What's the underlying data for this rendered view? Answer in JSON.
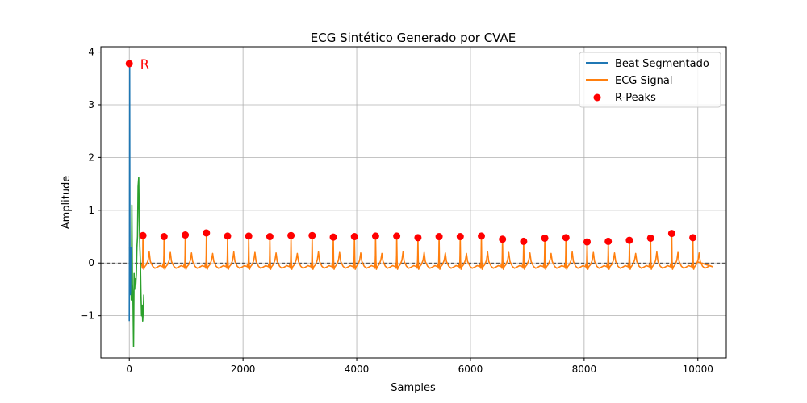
{
  "chart_data": {
    "type": "line",
    "title": "ECG Sintético Generado por CVAE",
    "xlabel": "Samples",
    "ylabel": "Amplitude",
    "xlim": [
      -500,
      10500
    ],
    "ylim": [
      -1.8,
      4.1
    ],
    "xticks": [
      0,
      2000,
      4000,
      6000,
      8000,
      10000
    ],
    "yticks": [
      -1,
      0,
      1,
      2,
      3,
      4
    ],
    "xtick_labels": [
      "0",
      "2000",
      "4000",
      "6000",
      "8000",
      "10000"
    ],
    "ytick_labels": [
      "−1",
      "0",
      "1",
      "2",
      "3",
      "4"
    ],
    "grid": true,
    "legend_position": "top-right",
    "zero_line": {
      "y": 0,
      "style": "dashed",
      "color": "#000000"
    },
    "annotation": {
      "text": "R",
      "x": 220,
      "y": 3.78,
      "color": "#ff0000"
    },
    "series": [
      {
        "name": "Beat Segmentado",
        "type": "line",
        "color": "#1f77b4",
        "x": [
          0,
          3,
          6,
          9,
          12,
          15,
          18,
          22,
          26,
          30
        ],
        "y": [
          -1.1,
          0.2,
          3.78,
          1.5,
          0.1,
          -0.3,
          -0.6,
          -0.5,
          0.1,
          0.3
        ]
      },
      {
        "name": "Beat (green)",
        "type": "line",
        "color": "#2ca02c",
        "x": [
          5,
          15,
          25,
          35,
          45,
          55,
          65,
          75,
          85,
          95,
          105,
          115,
          125,
          135,
          145,
          155,
          165,
          175,
          185,
          195,
          205,
          215,
          225,
          235,
          245,
          255
        ],
        "y": [
          0.3,
          0.0,
          0.1,
          -0.7,
          1.1,
          -0.4,
          -0.7,
          -1.58,
          -0.2,
          -0.5,
          -0.3,
          -0.4,
          -0.2,
          0.3,
          0.5,
          1.45,
          1.62,
          0.8,
          0.3,
          0.0,
          -0.6,
          -1.0,
          -0.8,
          -1.1,
          -0.9,
          -0.6
        ]
      },
      {
        "name": "ECG Signal",
        "type": "line",
        "color": "#ff7f0e",
        "beat_start": 240,
        "beat_period": 372,
        "beat_count": 27,
        "baseline": 0.0,
        "r_amplitudes": [
          0.52,
          0.5,
          0.53,
          0.57,
          0.51,
          0.51,
          0.5,
          0.52,
          0.52,
          0.49,
          0.5,
          0.51,
          0.51,
          0.48,
          0.5,
          0.5,
          0.51,
          0.45,
          0.41,
          0.47,
          0.48,
          0.4,
          0.41,
          0.43,
          0.47,
          0.56,
          0.48
        ],
        "end_x": 10000
      },
      {
        "name": "R-Peaks",
        "type": "scatter",
        "color": "#ff0000",
        "x": [
          0,
          240,
          612,
          984,
          1356,
          1728,
          2100,
          2472,
          2844,
          3216,
          3588,
          3960,
          4332,
          4704,
          5076,
          5448,
          5820,
          6192,
          6564,
          6936,
          7308,
          7680,
          8052,
          8424,
          8796,
          9168,
          9540,
          9912
        ],
        "y": [
          3.78,
          0.52,
          0.5,
          0.53,
          0.57,
          0.51,
          0.51,
          0.5,
          0.52,
          0.52,
          0.49,
          0.5,
          0.51,
          0.51,
          0.48,
          0.5,
          0.5,
          0.51,
          0.45,
          0.41,
          0.47,
          0.48,
          0.4,
          0.41,
          0.43,
          0.47,
          0.56,
          0.48
        ]
      }
    ],
    "legend": [
      {
        "label": "Beat Segmentado",
        "kind": "line",
        "color": "#1f77b4"
      },
      {
        "label": "ECG Signal",
        "kind": "line",
        "color": "#ff7f0e"
      },
      {
        "label": "R-Peaks",
        "kind": "marker",
        "color": "#ff0000"
      }
    ]
  }
}
